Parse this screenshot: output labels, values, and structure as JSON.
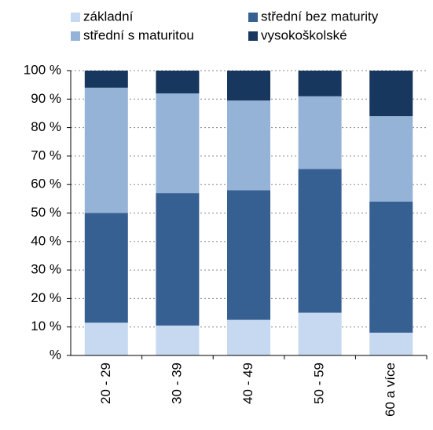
{
  "chart_data": {
    "type": "stacked_bar",
    "categories": [
      "20 - 29",
      "30 - 39",
      "40 - 49",
      "50 - 59",
      "60 a více"
    ],
    "series": [
      {
        "name": "základní",
        "color": "#c6d9f1",
        "values": [
          11.5,
          10.5,
          12.5,
          15,
          8
        ]
      },
      {
        "name": "střední bez maturity",
        "color": "#376092",
        "values": [
          38.5,
          46.5,
          45.5,
          50.5,
          46
        ]
      },
      {
        "name": "střední s maturitou",
        "color": "#95b3d7",
        "values": [
          44,
          35,
          31.5,
          25.5,
          30
        ]
      },
      {
        "name": "vysokoškolské",
        "color": "#17375e",
        "values": [
          6,
          8,
          10.5,
          9,
          16
        ]
      }
    ],
    "ylim": [
      0,
      100
    ],
    "yticks": [
      {
        "value": 0,
        "label": "%"
      },
      {
        "value": 10,
        "label": "10 %"
      },
      {
        "value": 20,
        "label": "20 %"
      },
      {
        "value": 30,
        "label": "30 %"
      },
      {
        "value": 40,
        "label": "40 %"
      },
      {
        "value": 50,
        "label": "50 %"
      },
      {
        "value": 60,
        "label": "60 %"
      },
      {
        "value": 70,
        "label": "70 %"
      },
      {
        "value": 80,
        "label": "80 %"
      },
      {
        "value": 90,
        "label": "90 %"
      },
      {
        "value": 100,
        "label": "100 %"
      }
    ],
    "grid": true
  }
}
